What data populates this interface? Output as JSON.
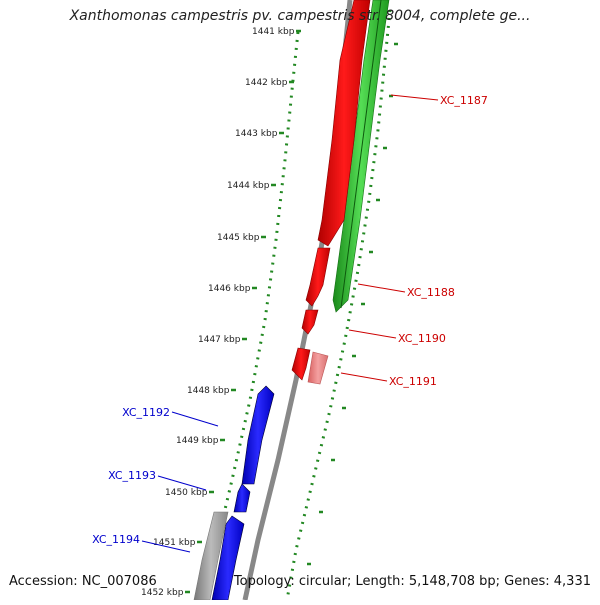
{
  "title": "Xanthomonas campestris pv. campestris str. 8004, complete ge...",
  "footer": {
    "accession": "Accession: NC_007086",
    "topology": "Topology: circular; Length: 5,148,708 bp; Genes: 4,331"
  },
  "ticks": [
    {
      "label": "1441 kbp",
      "kbp": 1441
    },
    {
      "label": "1442 kbp",
      "kbp": 1442
    },
    {
      "label": "1443 kbp",
      "kbp": 1443
    },
    {
      "label": "1444 kbp",
      "kbp": 1444
    },
    {
      "label": "1445 kbp",
      "kbp": 1445
    },
    {
      "label": "1446 kbp",
      "kbp": 1446
    },
    {
      "label": "1447 kbp",
      "kbp": 1447
    },
    {
      "label": "1448 kbp",
      "kbp": 1448
    },
    {
      "label": "1449 kbp",
      "kbp": 1449
    },
    {
      "label": "1450 kbp",
      "kbp": 1450
    },
    {
      "label": "1451 kbp",
      "kbp": 1451
    },
    {
      "label": "1452 kbp",
      "kbp": 1452
    }
  ],
  "genes": [
    {
      "label": "XC_1187",
      "color": "#cc0000"
    },
    {
      "label": "XC_1188",
      "color": "#cc0000"
    },
    {
      "label": "XC_1190",
      "color": "#cc0000"
    },
    {
      "label": "XC_1191",
      "color": "#cc0000"
    },
    {
      "label": "XC_1192",
      "color": "#0000cc"
    },
    {
      "label": "XC_1193",
      "color": "#0000cc"
    },
    {
      "label": "XC_1194",
      "color": "#0000cc"
    }
  ],
  "colors": {
    "forward_cds": "#ff0000",
    "forward_cds_light": "#f08080",
    "reverse_cds": "#0000ff",
    "other_feature": "#33bb33",
    "backbone": "#888888",
    "ruler": "#228822"
  }
}
